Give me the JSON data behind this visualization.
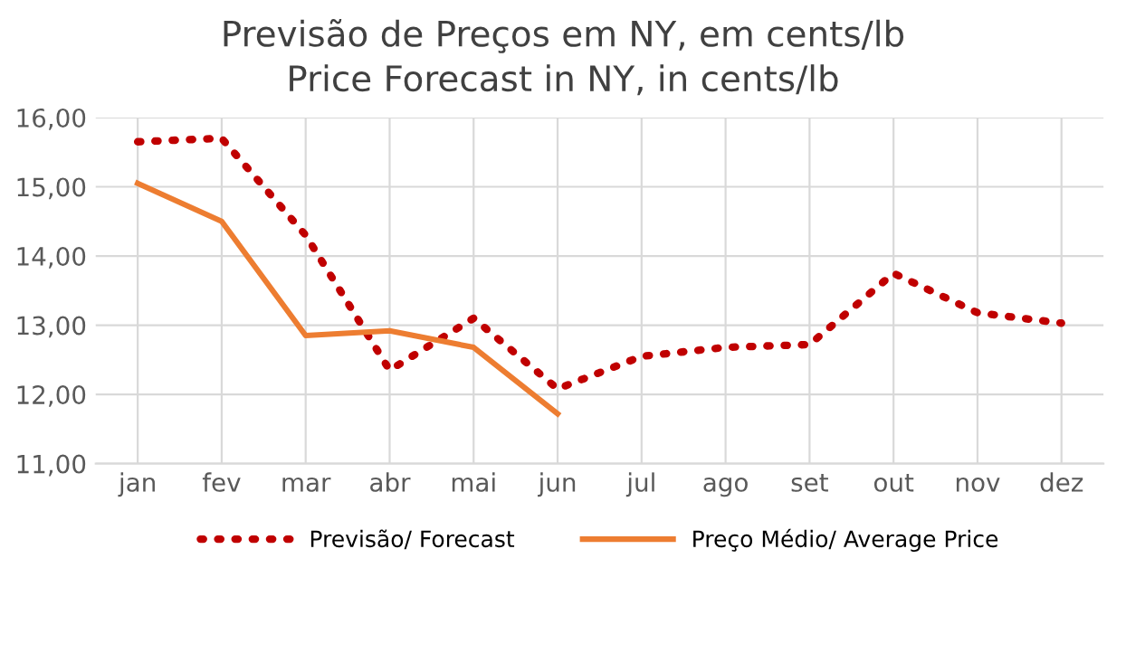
{
  "chart_data": {
    "type": "line",
    "title": "Previsão de Preços em NY, em cents/lb\nPrice Forecast in NY, in cents/lb",
    "categories": [
      "jan",
      "fev",
      "mar",
      "abr",
      "mai",
      "jun",
      "jul",
      "ago",
      "set",
      "out",
      "nov",
      "dez"
    ],
    "series": [
      {
        "name": "Previsão/ Forecast",
        "color": "#c00000",
        "line_style": "dotted",
        "values": [
          15.65,
          15.7,
          14.3,
          12.35,
          13.1,
          12.08,
          12.55,
          12.68,
          12.72,
          13.75,
          13.18,
          13.03
        ]
      },
      {
        "name": "Preço Médio/ Average Price",
        "color": "#ed7d31",
        "line_style": "solid",
        "values": [
          15.05,
          14.5,
          12.85,
          12.92,
          12.68,
          11.72,
          null,
          null,
          null,
          null,
          null,
          null
        ]
      }
    ],
    "ylim": [
      11,
      16
    ],
    "yticks": [
      {
        "value": 11,
        "label": "11,00"
      },
      {
        "value": 12,
        "label": "12,00"
      },
      {
        "value": 13,
        "label": "13,00"
      },
      {
        "value": 14,
        "label": "14,00"
      },
      {
        "value": 15,
        "label": "15,00"
      },
      {
        "value": 16,
        "label": "16,00"
      }
    ],
    "grid": true,
    "legend": "bottom",
    "marker": "none"
  }
}
